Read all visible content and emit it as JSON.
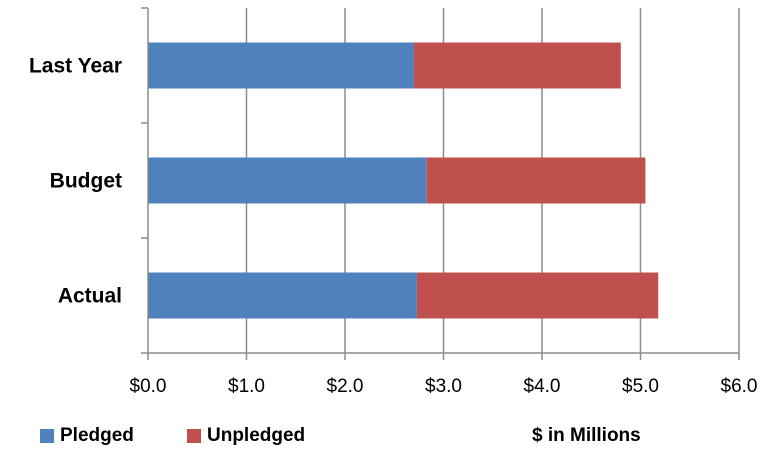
{
  "chart_data": {
    "type": "bar",
    "orientation": "horizontal",
    "stacked": true,
    "categories": [
      "Last Year",
      "Budget",
      "Actual"
    ],
    "series": [
      {
        "name": "Pledged",
        "values": [
          2.7,
          2.83,
          2.73
        ],
        "color": "#4f81bd"
      },
      {
        "name": "Unpledged",
        "values": [
          2.1,
          2.22,
          2.45
        ],
        "color": "#c0504d"
      }
    ],
    "xlim": [
      0,
      6
    ],
    "xticks": [
      "$0.0",
      "$1.0",
      "$2.0",
      "$3.0",
      "$4.0",
      "$5.0",
      "$6.0"
    ],
    "grid": true,
    "legend_position": "bottom-left"
  },
  "note": "$ in Millions"
}
